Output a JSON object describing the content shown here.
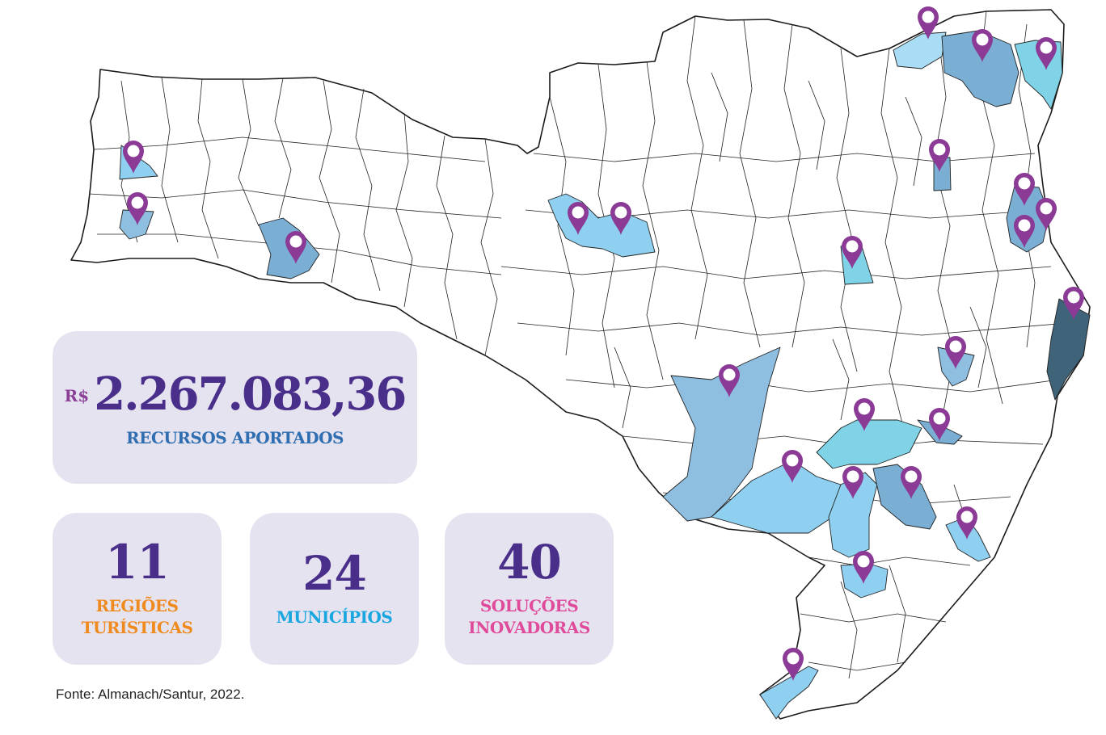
{
  "stats": {
    "currency": "R$",
    "total_value": "2.267.083,36",
    "total_label": "RECURSOS APORTADOS",
    "regioes_value": "11",
    "regioes_label_line1": "REGIÕES",
    "regioes_label_line2": "TURÍSTICAS",
    "municipios_value": "24",
    "municipios_label": "MUNICÍPIOS",
    "solucoes_value": "40",
    "solucoes_label_line1": "SOLUÇÕES",
    "solucoes_label_line2": "INOVADORAS"
  },
  "source": "Fonte: Almanach/Santur, 2022.",
  "map": {
    "pin_count": 24,
    "colors": {
      "pin": "#8b3a96",
      "light_blue": "#8fd0f0",
      "medium_blue": "#8fbfe0",
      "cyan": "#80d3e6",
      "steel_blue": "#7aaed2",
      "dark_blue": "#3f6378",
      "pale_blue": "#a9dcf5"
    }
  }
}
